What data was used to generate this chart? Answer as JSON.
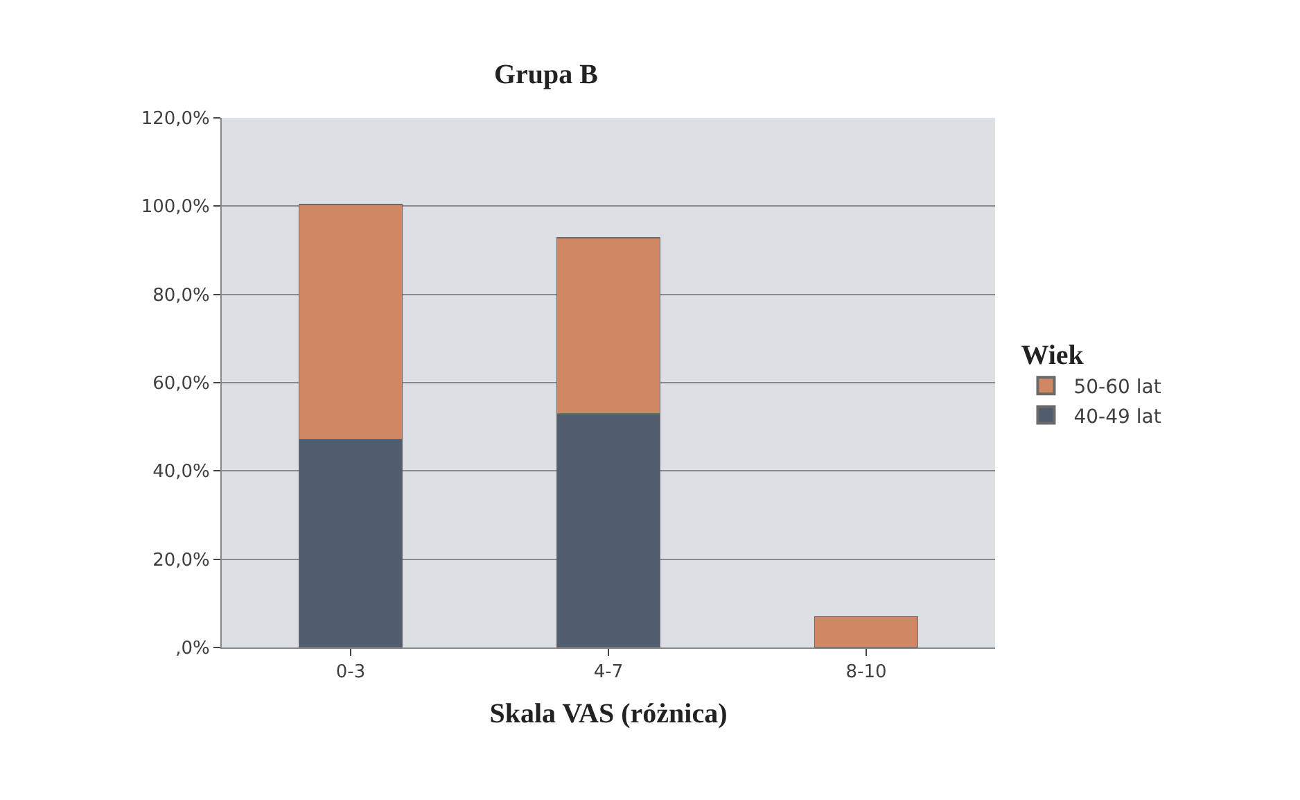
{
  "chart_data": {
    "type": "bar",
    "title": "Grupa B",
    "xlabel": "Skala VAS (różnica)",
    "legend_title": "Wiek",
    "categories": [
      "0-3",
      "4-7",
      "8-10"
    ],
    "stacked": true,
    "series": [
      {
        "name": "40-49 lat",
        "color": "#505d6f",
        "values": [
          47.2,
          52.9,
          null
        ]
      },
      {
        "name": "50-60 lat",
        "color": "#d08864",
        "values": [
          53.2,
          39.9,
          7.0
        ]
      }
    ],
    "ylim": [
      0,
      120
    ],
    "yticks": [
      {
        "value": 0,
        "label": ",0%"
      },
      {
        "value": 20,
        "label": "20,0%"
      },
      {
        "value": 40,
        "label": "40,0%"
      },
      {
        "value": 60,
        "label": "60,0%"
      },
      {
        "value": 80,
        "label": "80,0%"
      },
      {
        "value": 100,
        "label": "100,0%"
      },
      {
        "value": 120,
        "label": "120,0%"
      }
    ],
    "grid": "y",
    "legend": "right"
  }
}
